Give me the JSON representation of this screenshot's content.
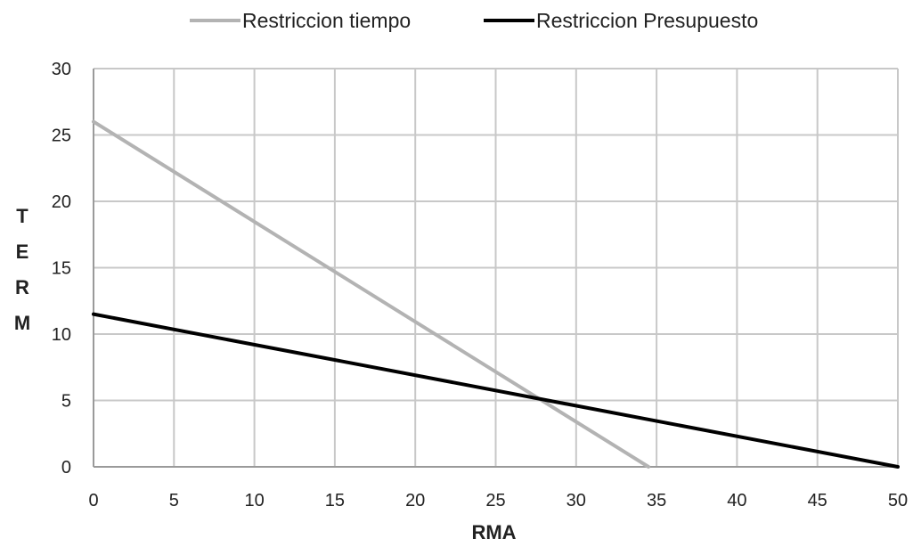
{
  "chart_data": {
    "type": "line",
    "title": "",
    "xlabel": "RMA",
    "ylabel": "TERM",
    "xlim": [
      0,
      50
    ],
    "ylim": [
      0,
      30
    ],
    "x_ticks": [
      0,
      5,
      10,
      15,
      20,
      25,
      30,
      35,
      40,
      45,
      50
    ],
    "y_ticks": [
      0,
      5,
      10,
      15,
      20,
      25,
      30
    ],
    "grid": true,
    "legend_position": "top",
    "series": [
      {
        "name": "Restriccion tiempo",
        "color": "#b3b3b3",
        "x": [
          0,
          34.5
        ],
        "y": [
          26,
          0
        ]
      },
      {
        "name": "Restriccion Presupuesto",
        "color": "#000000",
        "x": [
          0,
          50
        ],
        "y": [
          11.5,
          0
        ]
      }
    ]
  }
}
